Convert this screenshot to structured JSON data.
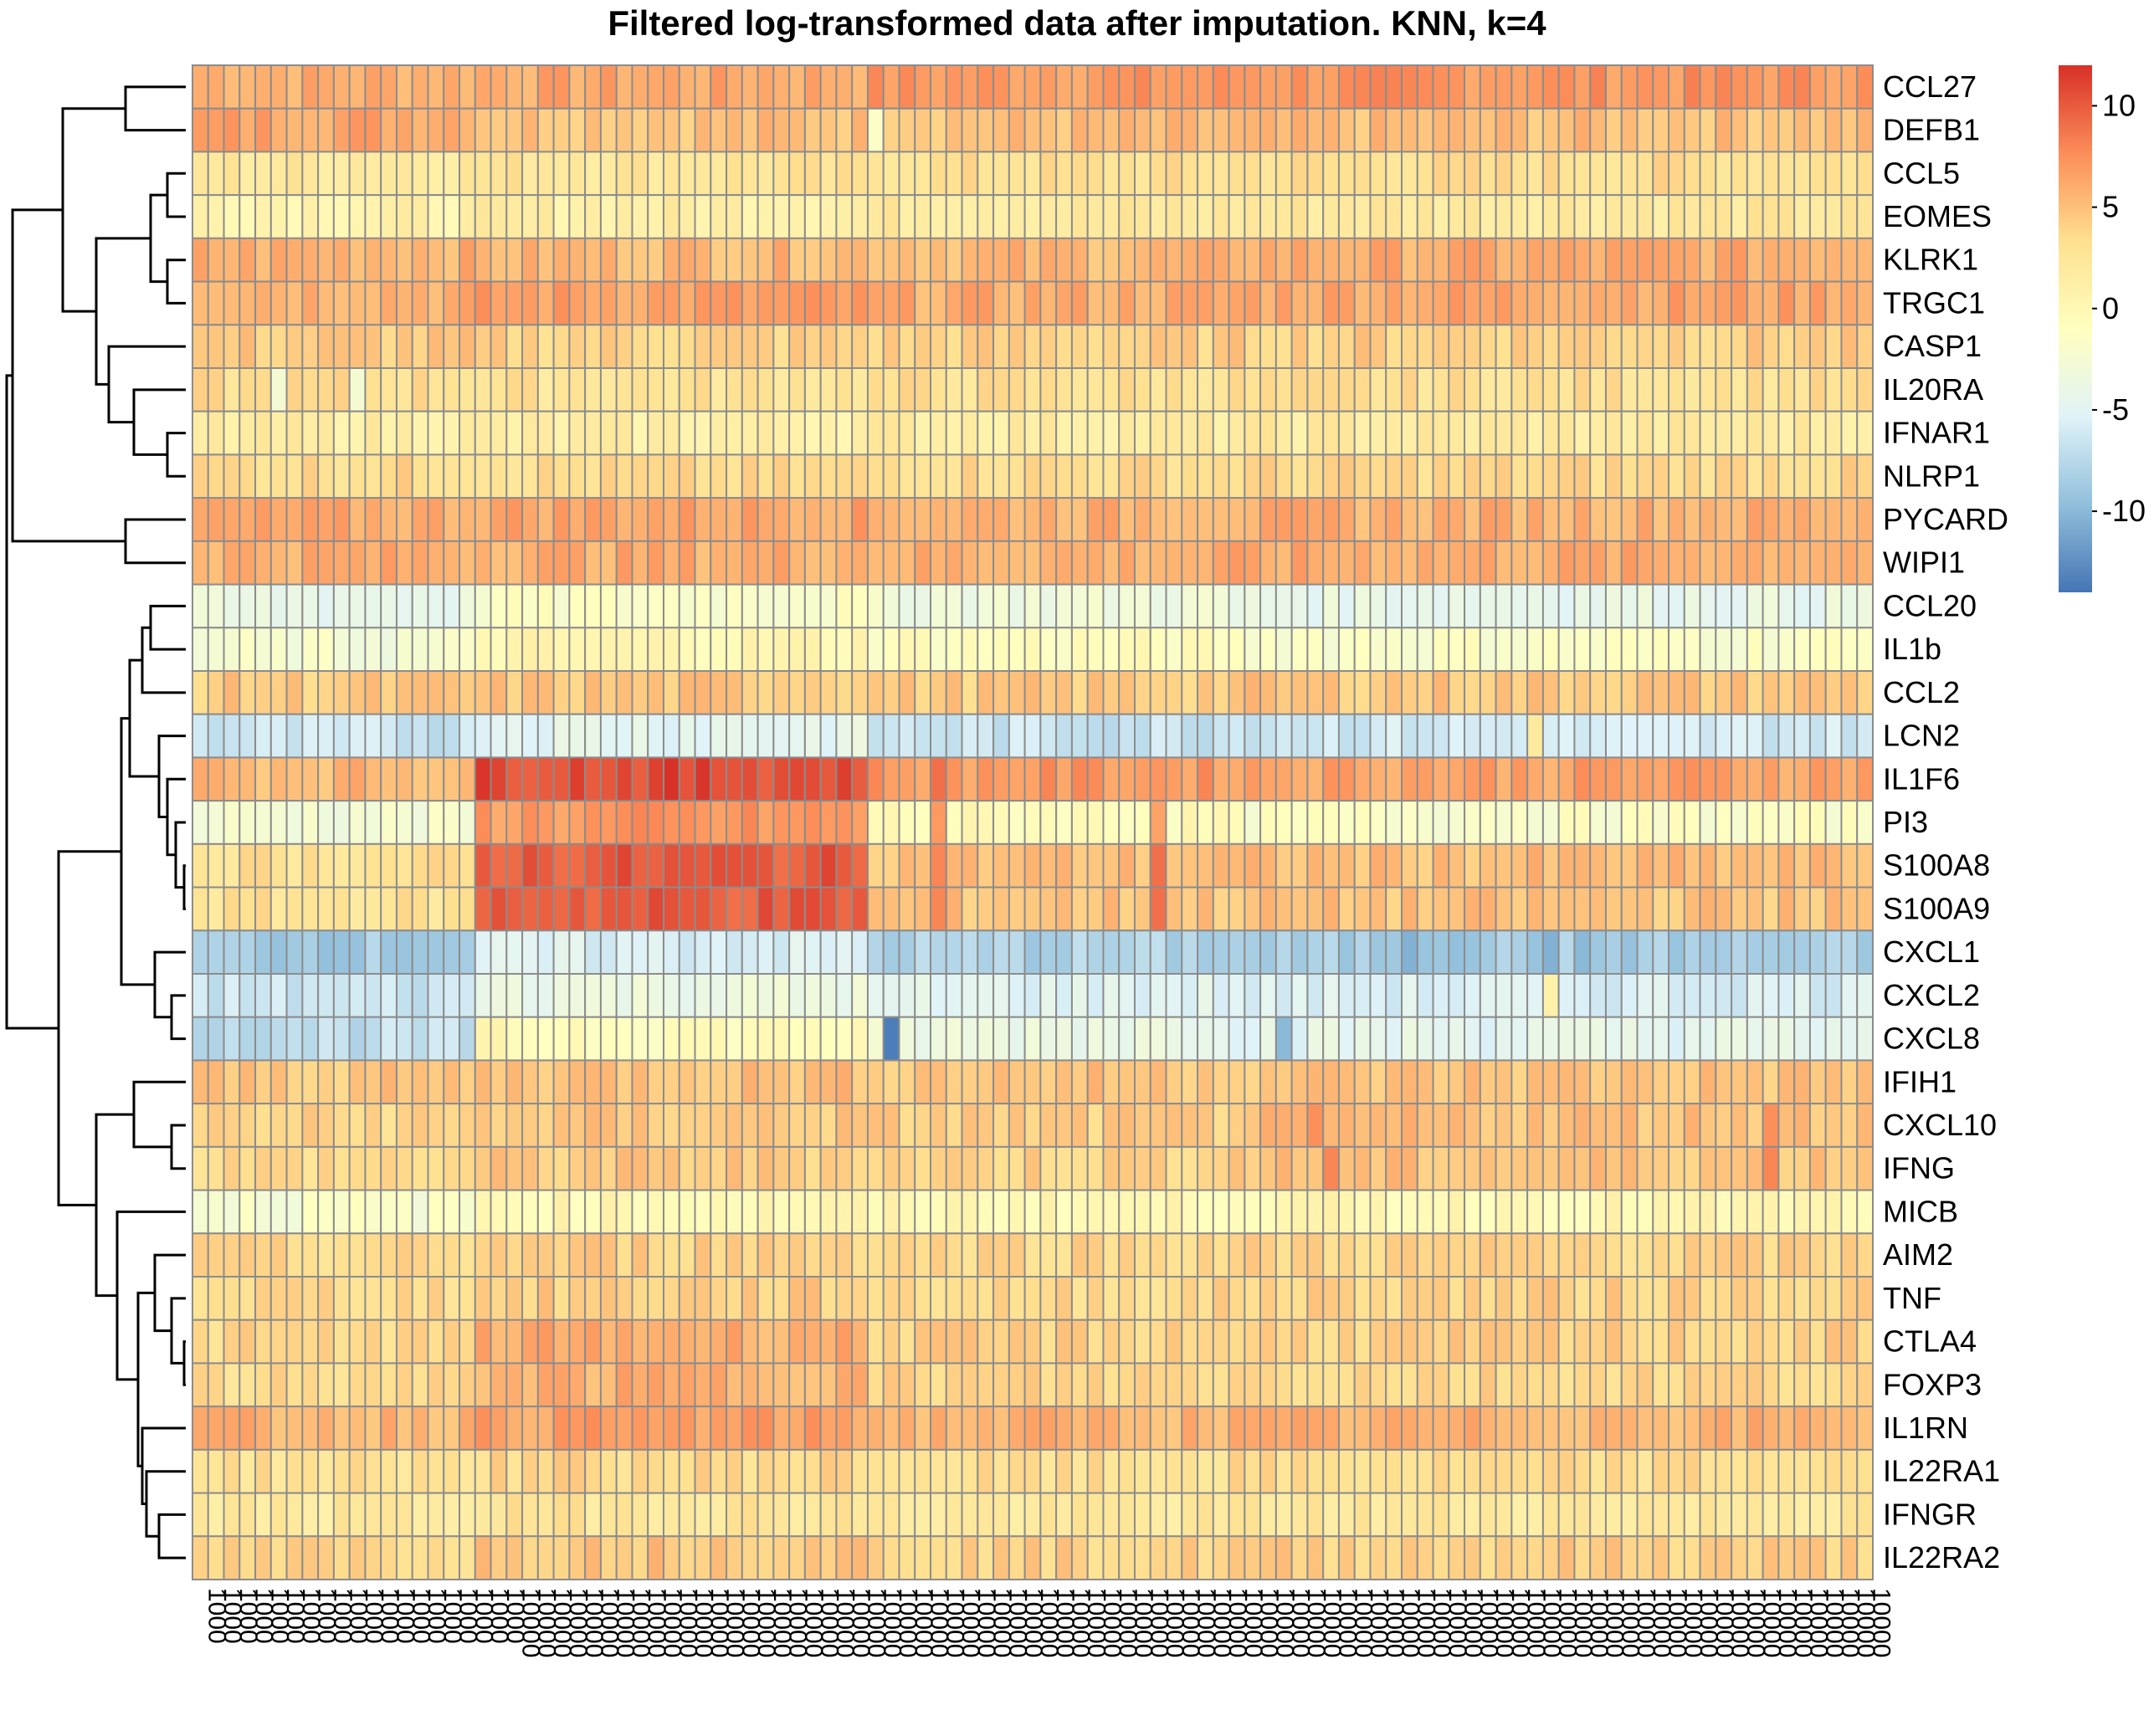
{
  "chart_data": {
    "type": "heatmap",
    "title": "Filtered log-transformed data after imputation. KNN, k=4",
    "color_scale": {
      "min": -14,
      "max": 12,
      "ticks": [
        10,
        5,
        0,
        -5,
        -10
      ],
      "colors": [
        "#4575b4",
        "#91bfdb",
        "#e0f3f8",
        "#ffffbf",
        "#fee090",
        "#fc8d59",
        "#d73027"
      ]
    },
    "n_columns": 107,
    "column_labels": [
      "1000",
      "1000",
      "1000",
      "1000",
      "1000",
      "1000",
      "1000",
      "1000",
      "1000",
      "1000",
      "1000",
      "1000",
      "1000",
      "1000",
      "1000",
      "1000",
      "1000",
      "1000",
      "1000",
      "1000",
      "10000",
      "10000",
      "10000",
      "10000",
      "10000",
      "10000",
      "10000",
      "10000",
      "10000",
      "10000",
      "10000",
      "10000",
      "10000",
      "10000",
      "10000",
      "10000",
      "10000",
      "10000",
      "10000",
      "10000",
      "10000",
      "10000",
      "10000",
      "10000",
      "10000",
      "10000",
      "10000",
      "10000",
      "10000",
      "10000",
      "10000",
      "10000",
      "10000",
      "10000",
      "10000",
      "10000",
      "10000",
      "10000",
      "10000",
      "10000",
      "10000",
      "10000",
      "10000",
      "10000",
      "10000",
      "10000",
      "10000",
      "10000",
      "10000",
      "10000",
      "10000",
      "10000",
      "10000",
      "10000",
      "10000",
      "10000",
      "10000",
      "10000",
      "10000",
      "10000",
      "10000",
      "10000",
      "10000",
      "10000",
      "10000",
      "10000",
      "10000",
      "10000",
      "10000",
      "10000",
      "10000",
      "10000",
      "10000",
      "10000",
      "10000",
      "10000",
      "10000",
      "10000",
      "10000",
      "10000",
      "10000",
      "10000",
      "10000",
      "10000",
      "10000",
      "10000",
      "10000"
    ],
    "rows": [
      "CCL27",
      "DEFB1",
      "CCL5",
      "EOMES",
      "KLRK1",
      "TRGC1",
      "CASP1",
      "IL20RA",
      "IFNAR1",
      "NLRP1",
      "PYCARD",
      "WIPI1",
      "CCL20",
      "IL1b",
      "CCL2",
      "LCN2",
      "IL1F6",
      "PI3",
      "S100A8",
      "S100A9",
      "CXCL1",
      "CXCL2",
      "CXCL8",
      "IFIH1",
      "CXCL10",
      "IFNG",
      "MICB",
      "AIM2",
      "TNF",
      "CTLA4",
      "FOXP3",
      "IL1RN",
      "IL22RA1",
      "IFNGR",
      "IL22RA2"
    ],
    "row_profiles": [
      {
        "base": 6.5,
        "seg": [
          6.0,
          6.2,
          7.0,
          7.2
        ]
      },
      {
        "base": 5.2,
        "seg": [
          6.5,
          5.0,
          5.0,
          5.0
        ]
      },
      {
        "base": 2.8,
        "seg": [
          2.2,
          2.6,
          3.0,
          3.2
        ]
      },
      {
        "base": 1.5,
        "seg": [
          0.8,
          1.3,
          2.0,
          2.2
        ]
      },
      {
        "base": 5.8,
        "seg": [
          5.8,
          5.4,
          5.4,
          6.0
        ]
      },
      {
        "base": 6.2,
        "seg": [
          6.0,
          6.6,
          6.0,
          6.4
        ]
      },
      {
        "base": 4.2,
        "seg": [
          4.4,
          4.0,
          4.0,
          4.2
        ]
      },
      {
        "base": 3.0,
        "seg": [
          3.2,
          2.8,
          3.0,
          3.0
        ]
      },
      {
        "base": 1.5,
        "seg": [
          1.4,
          1.2,
          1.6,
          1.8
        ]
      },
      {
        "base": 3.5,
        "seg": [
          3.5,
          3.3,
          3.5,
          3.6
        ]
      },
      {
        "base": 6.0,
        "seg": [
          6.0,
          6.4,
          5.8,
          5.8
        ]
      },
      {
        "base": 6.0,
        "seg": [
          6.0,
          6.0,
          5.8,
          6.0
        ]
      },
      {
        "base": -3.0,
        "seg": [
          -4.0,
          -1.5,
          -3.0,
          -4.0
        ]
      },
      {
        "base": -1.0,
        "seg": [
          -2.5,
          0.2,
          -0.8,
          -1.5
        ]
      },
      {
        "base": 4.5,
        "seg": [
          4.4,
          4.6,
          4.4,
          4.6
        ]
      },
      {
        "base": -6.0,
        "seg": [
          -6.5,
          -4.5,
          -6.5,
          -6.0
        ]
      },
      {
        "base": 6.5,
        "seg": [
          5.5,
          10.8,
          7.0,
          6.6
        ]
      },
      {
        "base": -1.5,
        "seg": [
          -2.5,
          7.0,
          -0.5,
          -1.5
        ]
      },
      {
        "base": 4.5,
        "seg": [
          3.0,
          10.0,
          5.0,
          5.0
        ]
      },
      {
        "base": 4.2,
        "seg": [
          2.8,
          10.0,
          4.8,
          4.8
        ]
      },
      {
        "base": -8.0,
        "seg": [
          -8.5,
          -5.5,
          -8.0,
          -8.5
        ]
      },
      {
        "base": -5.0,
        "seg": [
          -6.5,
          -3.5,
          -5.0,
          -5.5
        ]
      },
      {
        "base": -3.5,
        "seg": [
          -7.0,
          -0.5,
          -3.5,
          -4.5
        ]
      },
      {
        "base": 4.8,
        "seg": [
          4.6,
          5.0,
          4.8,
          4.8
        ]
      },
      {
        "base": 4.2,
        "seg": [
          3.8,
          4.5,
          4.2,
          5.0
        ]
      },
      {
        "base": 4.0,
        "seg": [
          3.6,
          4.4,
          4.0,
          4.8
        ]
      },
      {
        "base": -0.5,
        "seg": [
          -2.0,
          0.0,
          0.0,
          0.0
        ]
      },
      {
        "base": 3.8,
        "seg": [
          3.4,
          4.2,
          3.8,
          3.8
        ]
      },
      {
        "base": 3.8,
        "seg": [
          3.6,
          4.2,
          3.6,
          4.0
        ]
      },
      {
        "base": 4.2,
        "seg": [
          3.6,
          6.0,
          4.0,
          4.0
        ]
      },
      {
        "base": 4.0,
        "seg": [
          3.4,
          5.8,
          3.8,
          3.8
        ]
      },
      {
        "base": 5.8,
        "seg": [
          5.6,
          6.6,
          5.6,
          5.6
        ]
      },
      {
        "base": 3.2,
        "seg": [
          3.0,
          3.6,
          3.0,
          3.2
        ]
      },
      {
        "base": 2.2,
        "seg": [
          2.0,
          2.6,
          2.0,
          2.2
        ]
      },
      {
        "base": 4.2,
        "seg": [
          3.8,
          4.8,
          4.0,
          4.2
        ]
      }
    ],
    "column_segments": [
      0,
      18,
      43,
      66,
      107
    ],
    "accent_cells": [
      {
        "row": "LCN2",
        "col": 85,
        "value": 2.0
      },
      {
        "row": "CXCL8",
        "col": 44,
        "value": -13.5
      },
      {
        "row": "CXCL8",
        "col": 69,
        "value": -10.0
      },
      {
        "row": "CXCL1",
        "col": 77,
        "value": -10.5
      },
      {
        "row": "CXCL1",
        "col": 86,
        "value": -10.5
      },
      {
        "row": "CXCL1",
        "col": 88,
        "value": -10.0
      },
      {
        "row": "CXCL2",
        "col": 86,
        "value": 1.0
      },
      {
        "row": "DEFB1",
        "col": 43,
        "value": -1.5
      },
      {
        "row": "IL20RA",
        "col": 5,
        "value": -2.5
      },
      {
        "row": "IL20RA",
        "col": 10,
        "value": -2.5
      },
      {
        "row": "IFNG",
        "col": 72,
        "value": 8.0
      },
      {
        "row": "IFNG",
        "col": 100,
        "value": 8.0
      },
      {
        "row": "CXCL10",
        "col": 71,
        "value": 7.5
      },
      {
        "row": "CXCL10",
        "col": 100,
        "value": 7.5
      },
      {
        "row": "PI3",
        "col": 47,
        "value": 7.0
      },
      {
        "row": "S100A8",
        "col": 47,
        "value": 8.0
      },
      {
        "row": "S100A9",
        "col": 47,
        "value": 8.0
      },
      {
        "row": "IL1F6",
        "col": 47,
        "value": 9.0
      },
      {
        "row": "S100A8",
        "col": 61,
        "value": 9.0
      },
      {
        "row": "S100A9",
        "col": 61,
        "value": 9.0
      },
      {
        "row": "PI3",
        "col": 61,
        "value": 6.5
      }
    ]
  }
}
